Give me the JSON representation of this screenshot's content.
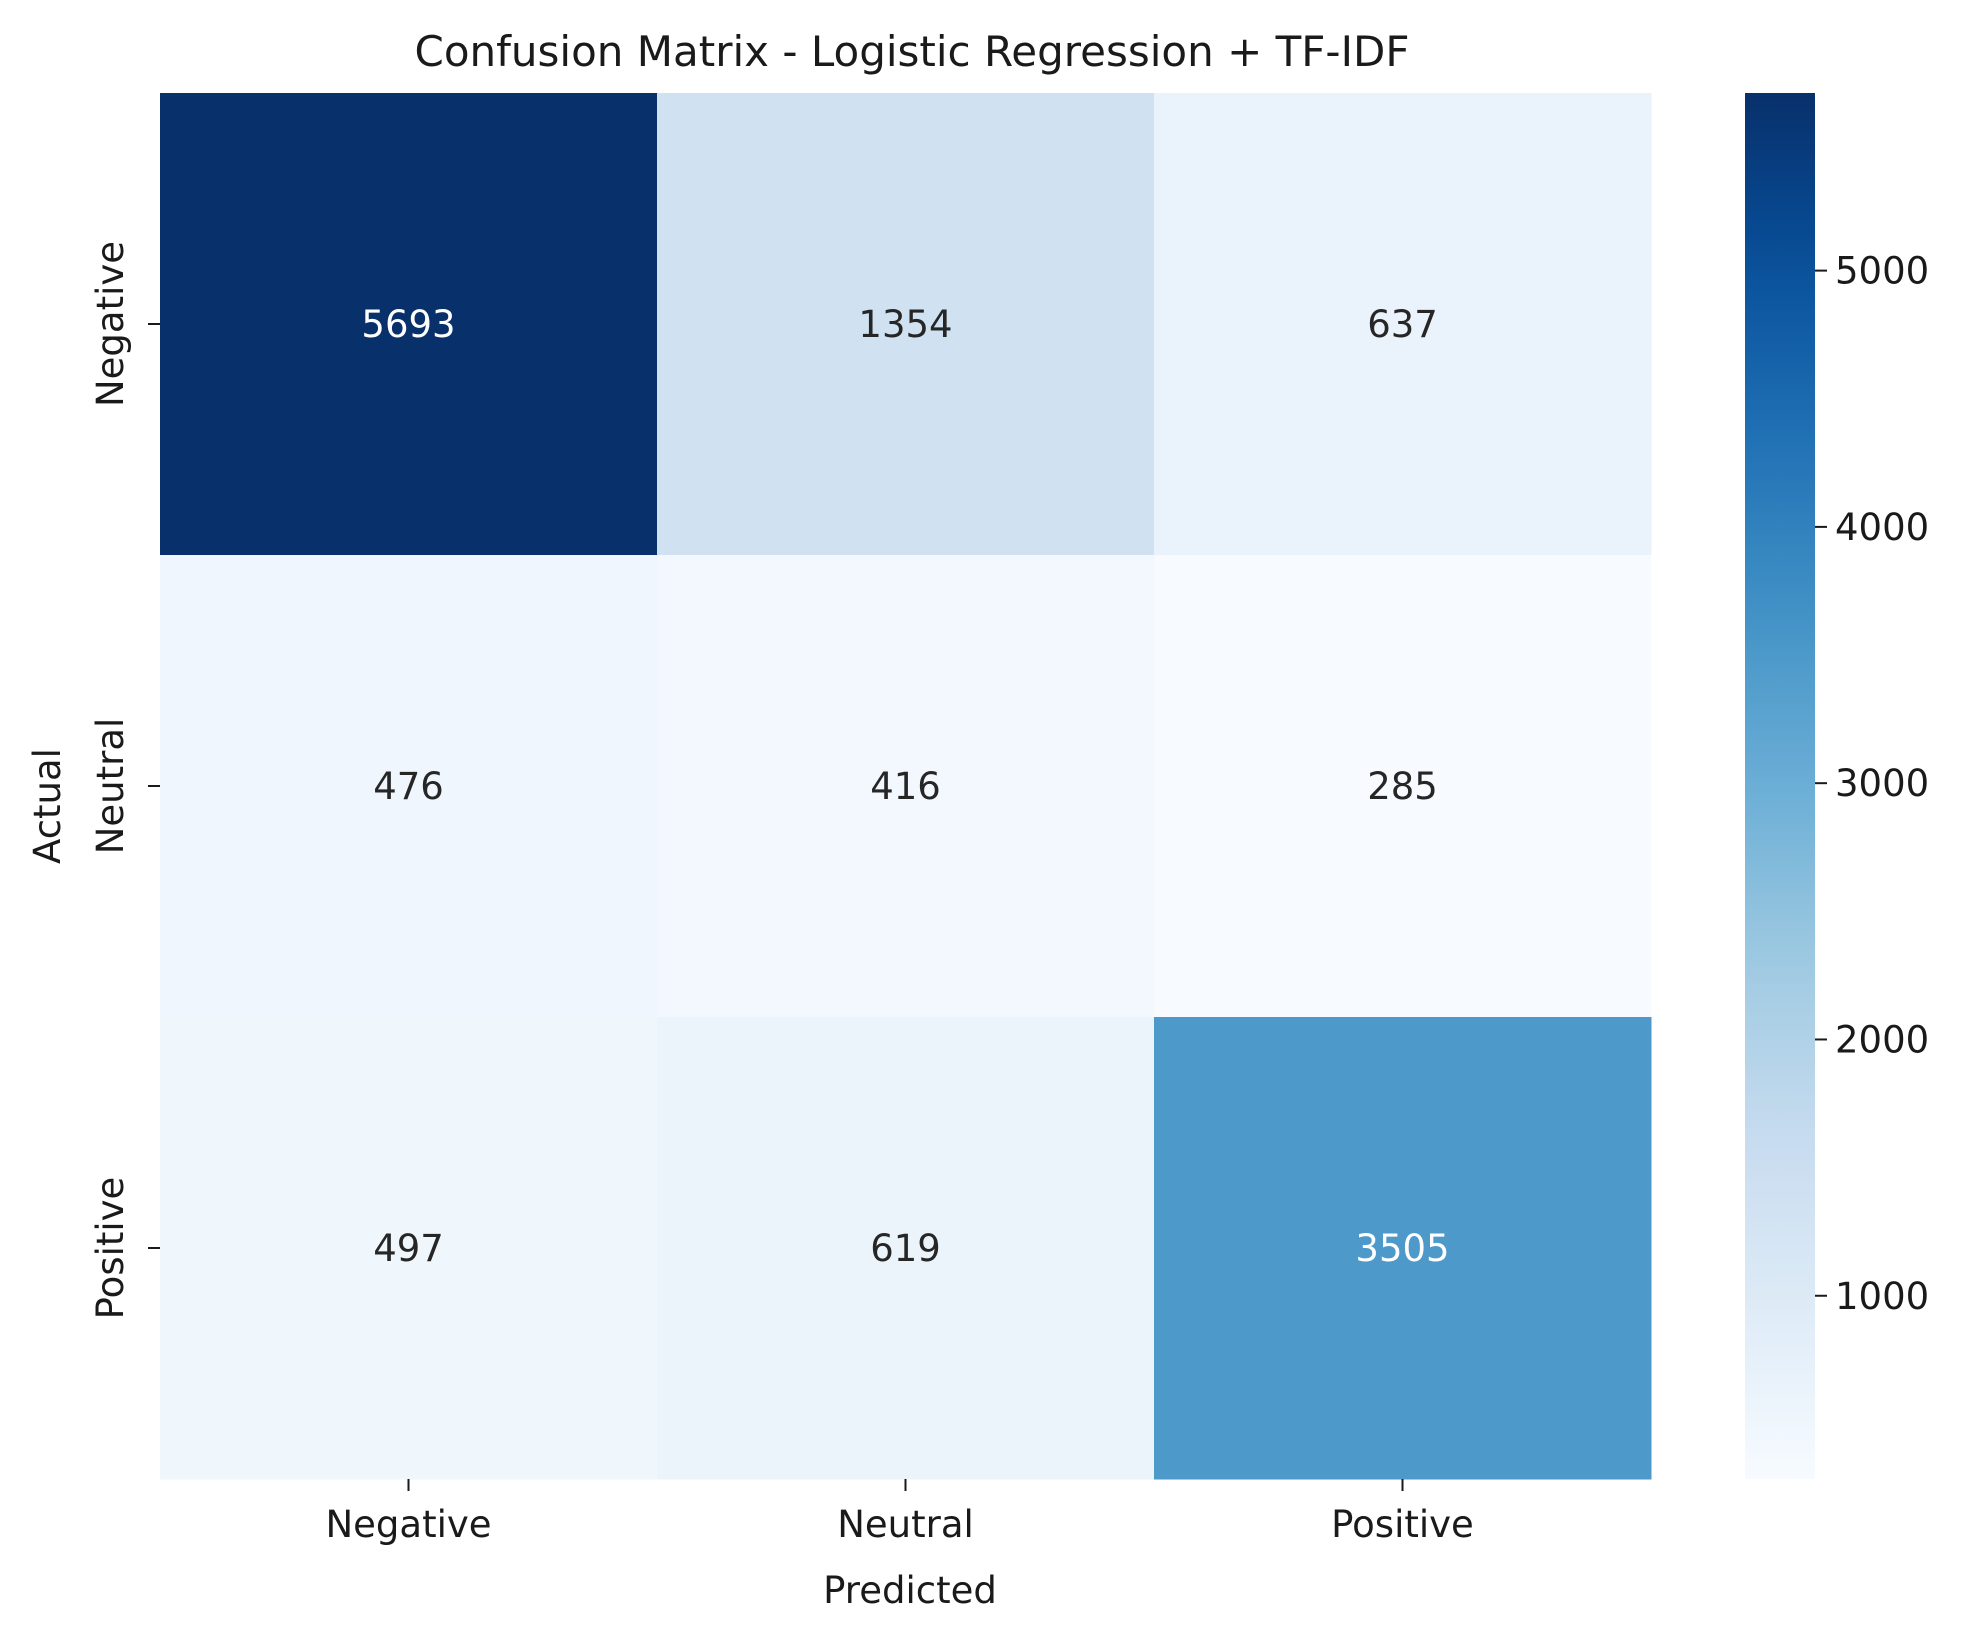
{
  "chart_data": {
    "type": "heatmap",
    "title": "Confusion Matrix - Logistic Regression + TF-IDF",
    "xlabel": "Predicted",
    "ylabel": "Actual",
    "x_categories": [
      "Negative",
      "Neutral",
      "Positive"
    ],
    "y_categories": [
      "Negative",
      "Neutral",
      "Positive"
    ],
    "values": [
      [
        5693,
        1354,
        637
      ],
      [
        476,
        416,
        285
      ],
      [
        497,
        619,
        3505
      ]
    ],
    "colormap": "Blues",
    "color_range": [
      285,
      5693
    ],
    "colorbar_ticks": [
      1000,
      2000,
      3000,
      4000,
      5000
    ],
    "grid": false
  }
}
